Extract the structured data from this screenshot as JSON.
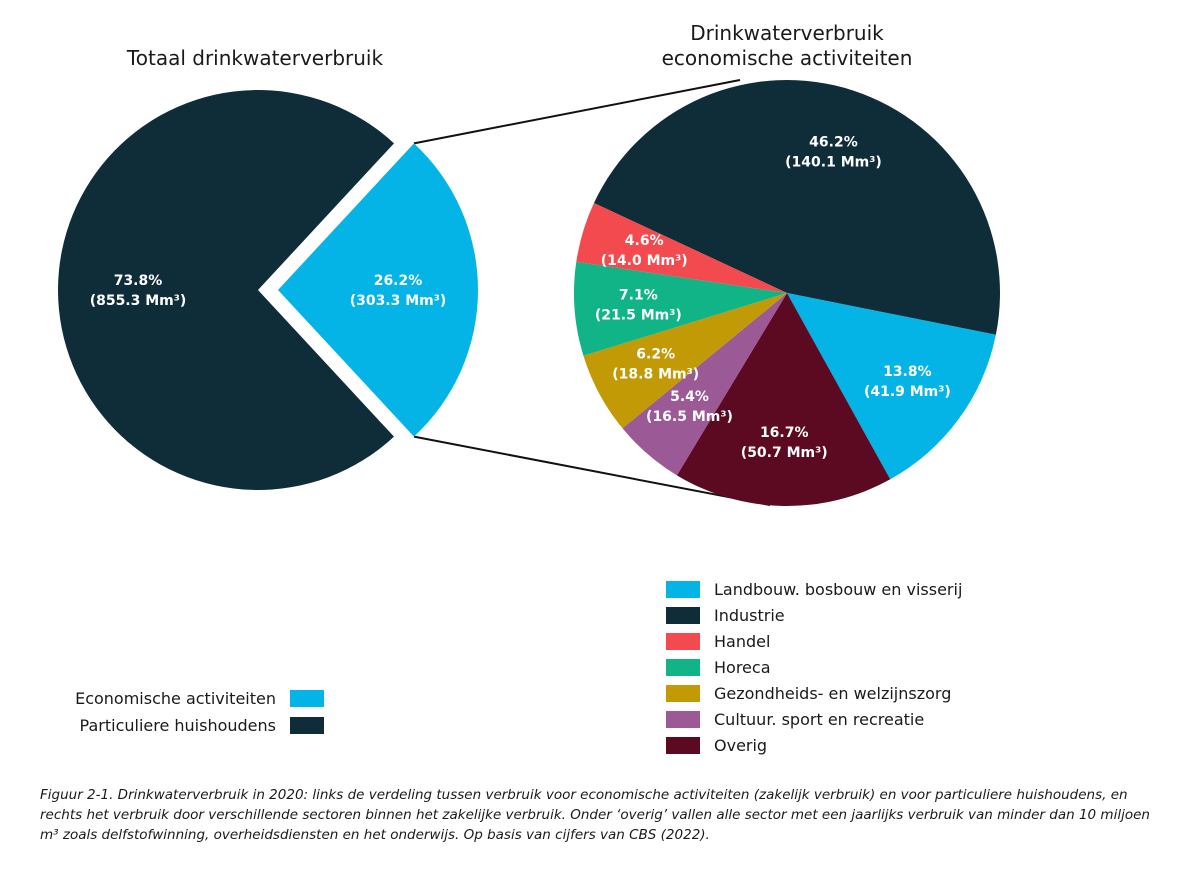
{
  "chart_data": [
    {
      "type": "pie",
      "title": "Totaal drinkwaterverbruik",
      "unit": "Mm³",
      "slices": [
        {
          "name": "Particuliere huishoudens",
          "percent": 73.8,
          "value": 855.3,
          "color": "#0f2d38",
          "pct_label": "73.8%",
          "value_label": "(855.3 Mm³)"
        },
        {
          "name": "Economische activiteiten",
          "percent": 26.2,
          "value": 303.3,
          "color": "#04b4e6",
          "pct_label": "26.2%",
          "value_label": "(303.3 Mm³)",
          "exploded": true
        }
      ],
      "legend": [
        {
          "label": "Economische activiteiten",
          "color": "#04b4e6"
        },
        {
          "label": "Particuliere huishoudens",
          "color": "#0f2d38"
        }
      ]
    },
    {
      "type": "pie",
      "title_lines": [
        "Drinkwaterverbruik",
        "economische activiteiten"
      ],
      "unit": "Mm³",
      "slices": [
        {
          "name": "Industrie",
          "percent": 46.2,
          "value": 140.1,
          "color": "#0f2d38",
          "pct_label": "46.2%",
          "value_label": "(140.1 Mm³)"
        },
        {
          "name": "Landbouw. bosbouw en visserij",
          "percent": 13.8,
          "value": 41.9,
          "color": "#04b4e6",
          "pct_label": "13.8%",
          "value_label": "(41.9 Mm³)"
        },
        {
          "name": "Overig",
          "percent": 16.7,
          "value": 50.7,
          "color": "#5c0a22",
          "pct_label": "16.7%",
          "value_label": "(50.7 Mm³)"
        },
        {
          "name": "Cultuur. sport en recreatie",
          "percent": 5.4,
          "value": 16.5,
          "color": "#9b5996",
          "pct_label": "5.4%",
          "value_label": "(16.5 Mm³)"
        },
        {
          "name": "Gezondheids- en welzijnszorg",
          "percent": 6.2,
          "value": 18.8,
          "color": "#c29a06",
          "pct_label": "6.2%",
          "value_label": "(18.8 Mm³)"
        },
        {
          "name": "Horeca",
          "percent": 7.1,
          "value": 21.5,
          "color": "#10b487",
          "pct_label": "7.1%",
          "value_label": "(21.5 Mm³)"
        },
        {
          "name": "Handel",
          "percent": 4.6,
          "value": 14.0,
          "color": "#f24a4f",
          "pct_label": "4.6%",
          "value_label": "(14.0 Mm³)"
        }
      ],
      "legend": [
        {
          "label": "Landbouw. bosbouw en visserij",
          "color": "#04b4e6"
        },
        {
          "label": "Industrie",
          "color": "#0f2d38"
        },
        {
          "label": "Handel",
          "color": "#f24a4f"
        },
        {
          "label": "Horeca",
          "color": "#10b487"
        },
        {
          "label": "Gezondheids- en welzijnszorg",
          "color": "#c29a06"
        },
        {
          "label": "Cultuur. sport en recreatie",
          "color": "#9b5996"
        },
        {
          "label": "Overig",
          "color": "#5c0a22"
        }
      ]
    }
  ],
  "caption": "Figuur 2-1. Drinkwaterverbruik in 2020: links de verdeling tussen verbruik voor economische activiteiten (zakelijk verbruik) en voor particuliere huishoudens, en rechts het verbruik door verschillende sectoren binnen het zakelijke verbruik. Onder ‘overig’ vallen alle sector met een jaarlijks verbruik van minder dan 10 miljoen m³ zoals delfstofwinning, overheidsdiensten en het onderwijs. Op basis van cijfers van CBS (2022)."
}
